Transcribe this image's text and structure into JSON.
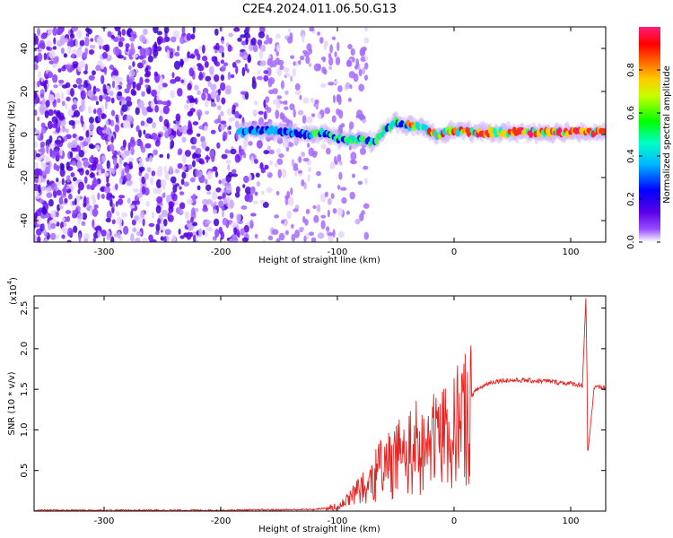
{
  "title": "C2E4.2024.011.06.50.G13",
  "chart_data": [
    {
      "type": "heatmap",
      "xlabel": "Height of straight line (km)",
      "ylabel": "Frequency (Hz)",
      "xlim": [
        -360,
        130
      ],
      "ylim": [
        -50,
        50
      ],
      "x_ticks": [
        -300,
        -200,
        -100,
        0,
        100
      ],
      "y_ticks": [
        -40,
        -20,
        0,
        20,
        40
      ],
      "colorbar": {
        "label": "Normalized spectral amplitude",
        "range": [
          0,
          1
        ],
        "ticks": [
          "0.0",
          "0.2",
          "0.4",
          "0.6",
          "0.8"
        ],
        "tick_values": [
          0.0,
          0.2,
          0.4,
          0.6,
          0.8
        ],
        "colormap": [
          "#ffffff",
          "#7a00ff",
          "#0000ff",
          "#00e5ff",
          "#00ff00",
          "#ffff00",
          "#ff6600",
          "#ff0000",
          "#ff1493"
        ]
      },
      "signal_track": {
        "description_free": true,
        "points": [
          {
            "x": -180,
            "y": 2
          },
          {
            "x": -160,
            "y": 2
          },
          {
            "x": -140,
            "y": 1
          },
          {
            "x": -125,
            "y": 0
          },
          {
            "x": -110,
            "y": 1
          },
          {
            "x": -95,
            "y": -3
          },
          {
            "x": -80,
            "y": -2
          },
          {
            "x": -70,
            "y": -4
          },
          {
            "x": -60,
            "y": 2
          },
          {
            "x": -50,
            "y": 6
          },
          {
            "x": -40,
            "y": 4
          },
          {
            "x": -25,
            "y": 3
          },
          {
            "x": -15,
            "y": 0
          },
          {
            "x": 0,
            "y": 2
          },
          {
            "x": 20,
            "y": 1
          },
          {
            "x": 60,
            "y": 1
          },
          {
            "x": 100,
            "y": 1
          },
          {
            "x": 130,
            "y": 1
          }
        ],
        "noise_extent_x": [
          -360,
          -100
        ]
      }
    },
    {
      "type": "line",
      "xlabel": "Height of straight line (km)",
      "ylabel": "SNR (10 * v/v)",
      "y_multiplier": "(x10",
      "y_multiplier_exp": "4",
      "y_multiplier_close": ")",
      "xlim": [
        -360,
        130
      ],
      "ylim": [
        0,
        2.65
      ],
      "x_ticks": [
        -300,
        -200,
        -100,
        0,
        100
      ],
      "y_ticks": [
        "0.5",
        "1.0",
        "1.5",
        "2.0",
        "2.5"
      ],
      "y_tick_values": [
        0.5,
        1.0,
        1.5,
        2.0,
        2.5
      ],
      "series": [
        {
          "color": "#e8201e",
          "x": [
            -360,
            -300,
            -200,
            -120,
            -100,
            -90,
            -80,
            -70,
            -60,
            -50,
            -40,
            -30,
            -20,
            -10,
            0,
            10,
            20,
            30,
            40,
            60,
            80,
            100,
            110,
            113,
            115,
            120,
            130
          ],
          "y": [
            0.01,
            0.01,
            0.01,
            0.02,
            0.05,
            0.2,
            0.35,
            0.5,
            0.65,
            0.75,
            0.9,
            0.95,
            1.05,
            1.15,
            1.25,
            1.35,
            1.5,
            1.58,
            1.61,
            1.61,
            1.6,
            1.57,
            1.55,
            2.62,
            0.75,
            1.52,
            1.52
          ]
        }
      ]
    }
  ]
}
